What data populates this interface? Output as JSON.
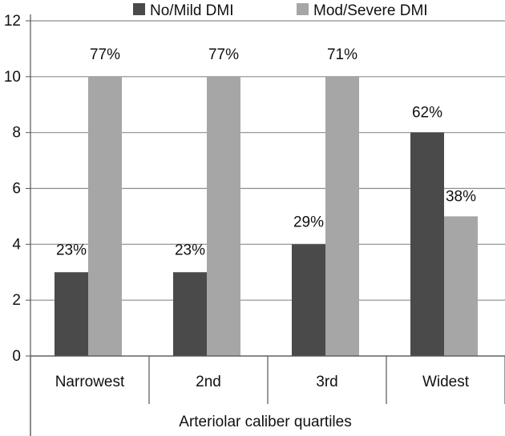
{
  "chart_data": {
    "type": "bar",
    "title": "",
    "xlabel": "Arteriolar caliber quartiles",
    "ylabel": "",
    "ylim": [
      0,
      12
    ],
    "yticks": [
      "0",
      "2",
      "4",
      "6",
      "8",
      "10",
      "12"
    ],
    "grid": true,
    "legend_position": "top",
    "categories": [
      "Narrowest",
      "2nd",
      "3rd",
      "Widest"
    ],
    "series": [
      {
        "name": "No/Mild DMI",
        "color": "#4a4a4a",
        "values": [
          3,
          3,
          4,
          8
        ],
        "labels": [
          "23%",
          "23%",
          "29%",
          "62%"
        ]
      },
      {
        "name": "Mod/Severe DMI",
        "color": "#a6a6a6",
        "values": [
          10,
          10,
          10,
          5
        ],
        "labels": [
          "77%",
          "77%",
          "71%",
          "38%"
        ]
      }
    ]
  }
}
